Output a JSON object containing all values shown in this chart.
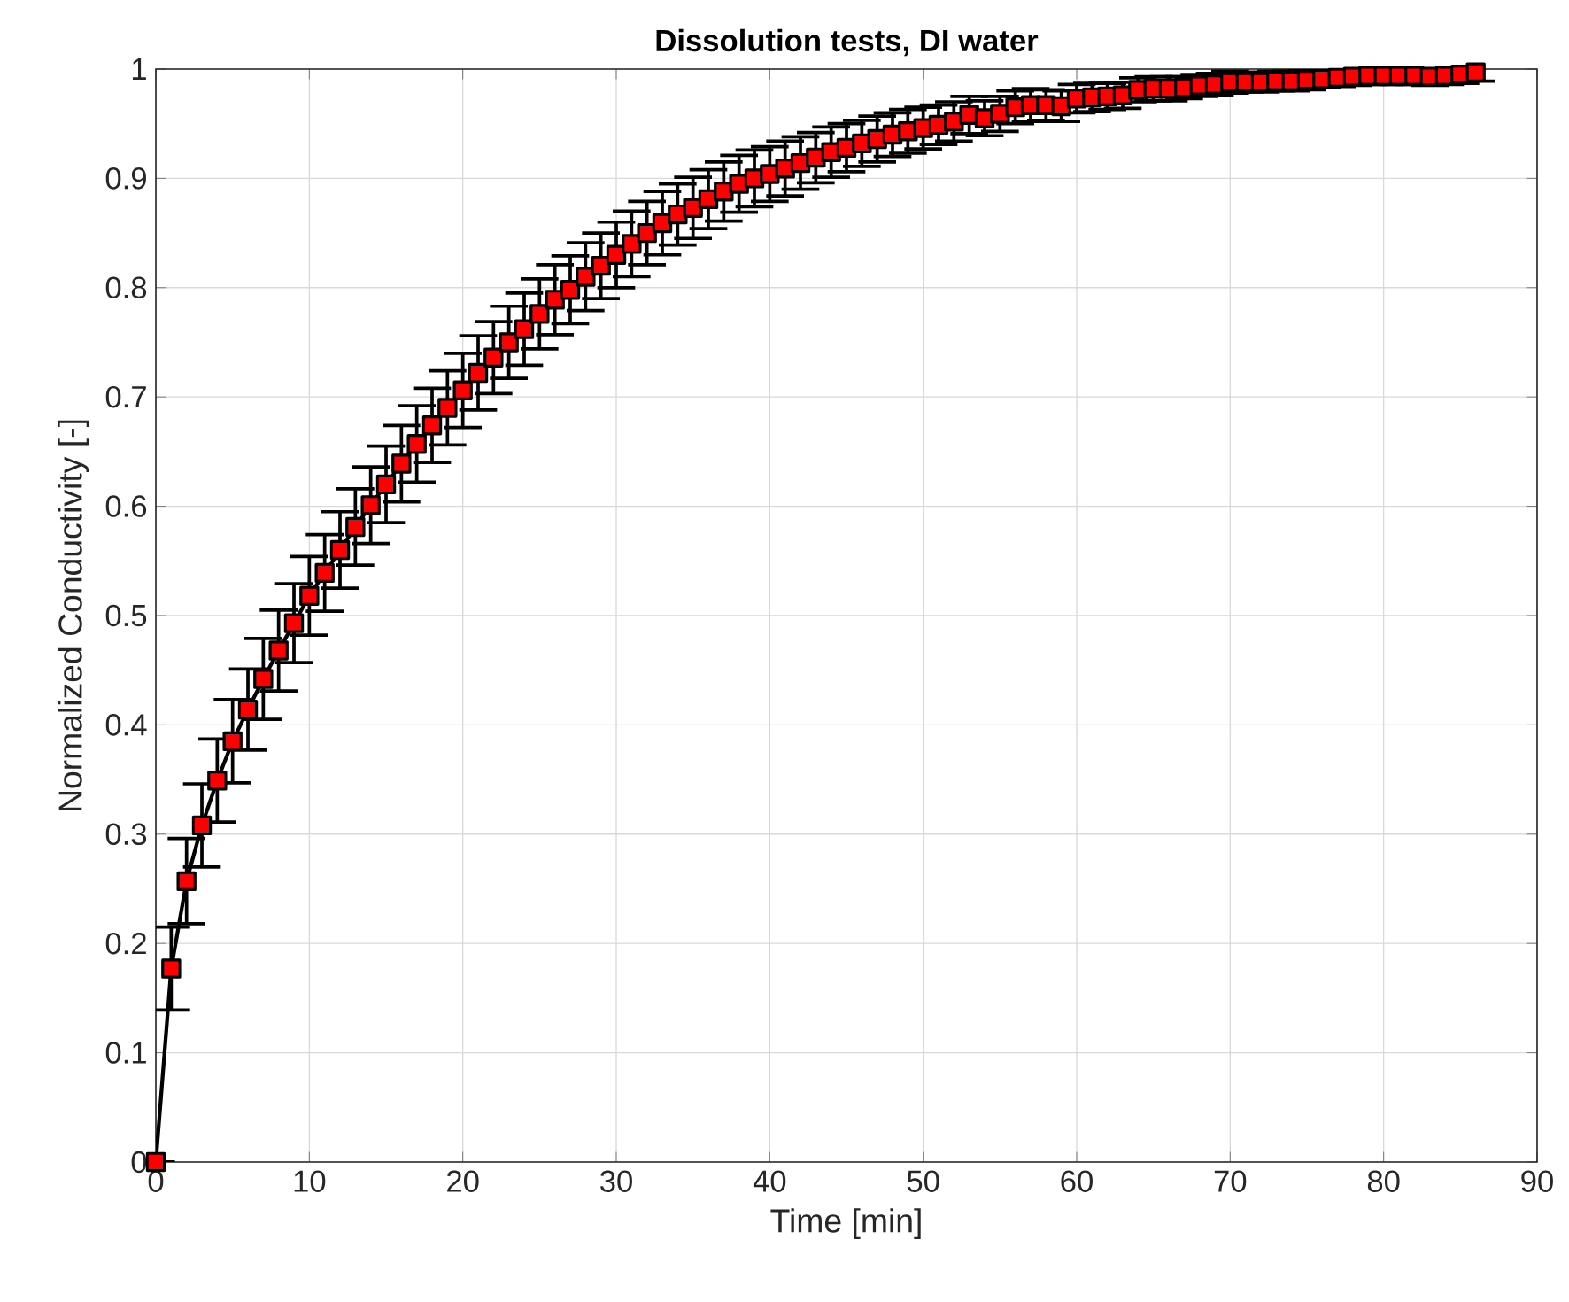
{
  "chart_data": {
    "type": "line",
    "title": "Dissolution tests, DI water",
    "xlabel": "Time [min]",
    "ylabel": "Normalized Conductivity [-]",
    "x": [
      0,
      1,
      2,
      3,
      4,
      5,
      6,
      7,
      8,
      9,
      10,
      11,
      12,
      13,
      14,
      15,
      16,
      17,
      18,
      19,
      20,
      21,
      22,
      23,
      24,
      25,
      26,
      27,
      28,
      29,
      30,
      31,
      32,
      33,
      34,
      35,
      36,
      37,
      38,
      39,
      40,
      41,
      42,
      43,
      44,
      45,
      46,
      47,
      48,
      49,
      50,
      51,
      52,
      53,
      54,
      55,
      56,
      57,
      58,
      59,
      60,
      61,
      62,
      63,
      64,
      65,
      66,
      67,
      68,
      69,
      70,
      71,
      72,
      73,
      74,
      75,
      76,
      77,
      78,
      79,
      80,
      81,
      82,
      83,
      84,
      85,
      86
    ],
    "series": [
      {
        "color": "#ff0000",
        "values": [
          0,
          0.177,
          0.257,
          0.308,
          0.349,
          0.385,
          0.414,
          0.442,
          0.468,
          0.493,
          0.518,
          0.539,
          0.56,
          0.581,
          0.601,
          0.62,
          0.639,
          0.657,
          0.674,
          0.69,
          0.706,
          0.722,
          0.736,
          0.75,
          0.762,
          0.776,
          0.789,
          0.798,
          0.81,
          0.82,
          0.83,
          0.84,
          0.85,
          0.859,
          0.867,
          0.873,
          0.881,
          0.888,
          0.895,
          0.9,
          0.904,
          0.909,
          0.914,
          0.919,
          0.924,
          0.928,
          0.932,
          0.936,
          0.94,
          0.943,
          0.946,
          0.949,
          0.952,
          0.958,
          0.955,
          0.959,
          0.965,
          0.967,
          0.967,
          0.966,
          0.973,
          0.974,
          0.975,
          0.976,
          0.981,
          0.982,
          0.982,
          0.983,
          0.985,
          0.986,
          0.988,
          0.988,
          0.988,
          0.989,
          0.989,
          0.99,
          0.991,
          0.992,
          0.993,
          0.994,
          0.994,
          0.994,
          0.994,
          0.993,
          0.994,
          0.995,
          0.997
        ],
        "errors": [
          0,
          0.038,
          0.039,
          0.038,
          0.038,
          0.038,
          0.037,
          0.037,
          0.037,
          0.036,
          0.036,
          0.035,
          0.035,
          0.035,
          0.035,
          0.035,
          0.035,
          0.035,
          0.034,
          0.034,
          0.034,
          0.034,
          0.033,
          0.033,
          0.033,
          0.032,
          0.032,
          0.031,
          0.031,
          0.03,
          0.03,
          0.03,
          0.029,
          0.029,
          0.028,
          0.028,
          0.027,
          0.027,
          0.026,
          0.026,
          0.025,
          0.025,
          0.024,
          0.023,
          0.023,
          0.022,
          0.021,
          0.021,
          0.02,
          0.02,
          0.019,
          0.018,
          0.018,
          0.017,
          0.016,
          0.016,
          0.015,
          0.015,
          0.014,
          0.014,
          0.013,
          0.013,
          0.012,
          0.012,
          0.011,
          0.011,
          0.011,
          0.01,
          0.01,
          0.01,
          0.01,
          0.009,
          0.009,
          0.009,
          0.009,
          0.009,
          0.008,
          0.008,
          0.008,
          0.008,
          0.008,
          0.008,
          0.008,
          0.008,
          0.008,
          0.008,
          0.008
        ]
      }
    ],
    "xlim": [
      0,
      90
    ],
    "ylim": [
      0,
      1
    ],
    "xticks": [
      0,
      10,
      20,
      30,
      40,
      50,
      60,
      70,
      80,
      90
    ],
    "yticks": [
      0,
      0.1,
      0.2,
      0.3,
      0.4,
      0.5,
      0.6,
      0.7,
      0.8,
      0.9,
      1
    ],
    "grid": true,
    "marker": "square",
    "line_style": "solid"
  }
}
